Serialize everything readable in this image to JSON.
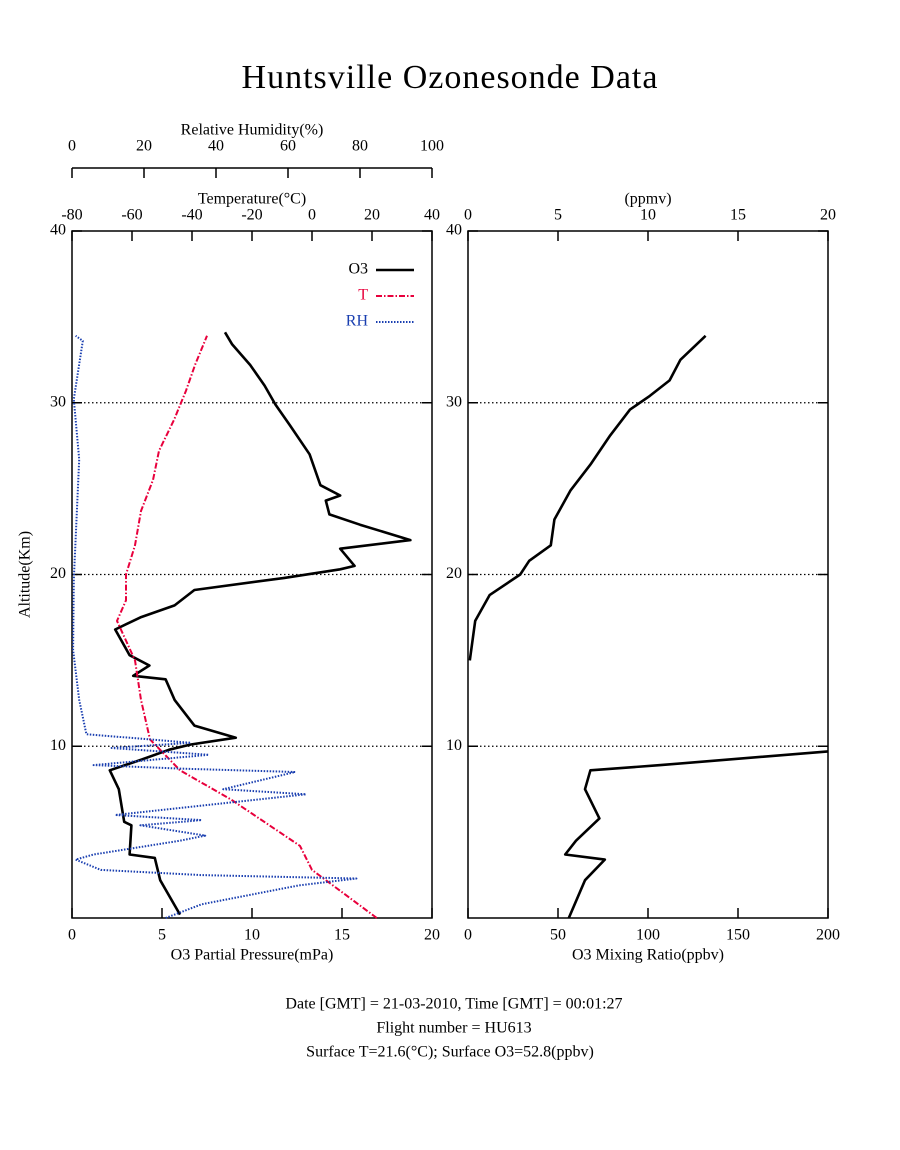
{
  "title": "Huntsville Ozonesonde Data",
  "footer": [
    "Date [GMT] = 21-03-2010,  Time [GMT] = 00:01:27",
    "Flight number = HU613",
    "Surface T=21.6(°C); Surface O3=52.8(ppbv)"
  ],
  "chart_data": [
    {
      "type": "line",
      "ylabel": "Altitude(Km)",
      "ylim": [
        0,
        40
      ],
      "yticks": [
        10,
        20,
        30,
        40
      ],
      "grid": true,
      "xlabel": "O3 Partial Pressure(mPa)",
      "xlim": [
        0,
        20
      ],
      "xticks": [
        0,
        5,
        10,
        15,
        20
      ],
      "x2label": "Temperature(°C)",
      "x2lim": [
        -80,
        40
      ],
      "x2ticks": [
        -80,
        -60,
        -40,
        -20,
        0,
        20,
        40
      ],
      "x3label": "Relative Humidity(%)",
      "x3lim": [
        0,
        100
      ],
      "x3ticks": [
        0,
        20,
        40,
        60,
        80,
        100
      ],
      "legend": "upper right",
      "series": [
        {
          "name": "O3",
          "color": "#000000",
          "linestyle": "solid",
          "axis": "x",
          "values": [
            6.0,
            4.9,
            4.6,
            3.2,
            3.3,
            2.9,
            2.6,
            2.1,
            3.8,
            5.4,
            6.6,
            9.1,
            6.8,
            5.7,
            5.2,
            3.4,
            4.3,
            3.2,
            2.4,
            3.8,
            5.7,
            6.8,
            11.8,
            14.9,
            15.7,
            14.9,
            18.8,
            16.0,
            14.3,
            14.1,
            14.9,
            13.8,
            13.2,
            12.1,
            11.3,
            10.7,
            9.9,
            8.9,
            8.5
          ],
          "altitude": [
            0.2,
            2.2,
            3.5,
            3.7,
            5.4,
            5.6,
            7.5,
            8.6,
            9.2,
            9.8,
            10.1,
            10.5,
            11.2,
            12.7,
            13.9,
            14.1,
            14.7,
            15.3,
            16.8,
            17.5,
            18.2,
            19.1,
            19.8,
            20.3,
            20.5,
            21.5,
            22.0,
            22.9,
            23.5,
            24.3,
            24.6,
            25.2,
            27.0,
            28.7,
            29.9,
            31.0,
            32.2,
            33.4,
            34.1
          ]
        },
        {
          "name": "T",
          "color": "#e8003c",
          "linestyle": "dashdot",
          "axis": "x2",
          "values": [
            21.6,
            0,
            -4,
            -27,
            -44,
            -49,
            -54,
            -57,
            -59,
            -65,
            -62,
            -62,
            -59,
            -57,
            -53,
            -51,
            -46,
            -42,
            -39,
            -35
          ],
          "altitude": [
            0,
            2.8,
            4.2,
            6.9,
            8.6,
            9.5,
            10.4,
            12.7,
            15.0,
            17.3,
            18.5,
            20.0,
            21.7,
            23.7,
            25.5,
            27.2,
            29.0,
            30.7,
            32.2,
            33.9
          ]
        },
        {
          "name": "RH",
          "color": "#1a3fb0",
          "linestyle": "dotted",
          "axis": "x3",
          "values": [
            26,
            36,
            63,
            79,
            36,
            8,
            1,
            6,
            30,
            37,
            19,
            36,
            12,
            65,
            42,
            62,
            30,
            6,
            38,
            11,
            33,
            4,
            2,
            0.3,
            0.5,
            2,
            0.5,
            3,
            1
          ],
          "altitude": [
            0,
            0.8,
            1.9,
            2.3,
            2.5,
            2.8,
            3.4,
            3.7,
            4.5,
            4.8,
            5.4,
            5.7,
            6.0,
            7.2,
            7.5,
            8.5,
            8.7,
            8.9,
            9.5,
            9.9,
            10.2,
            10.7,
            12.7,
            15.6,
            19.7,
            26.7,
            30.2,
            33.6,
            33.9
          ]
        }
      ]
    },
    {
      "type": "line",
      "ylim": [
        0,
        40
      ],
      "yticks": [
        10,
        20,
        30,
        40
      ],
      "grid": true,
      "xlabel": "O3 Mixing Ratio(ppbv)",
      "xlim": [
        0,
        200
      ],
      "xticks": [
        0,
        50,
        100,
        150,
        200
      ],
      "x2label": "(ppmv)",
      "x2lim": [
        0,
        20
      ],
      "x2ticks": [
        0,
        5,
        10,
        15,
        20
      ],
      "series": [
        {
          "color": "#000000",
          "linestyle": "solid",
          "axis": "x",
          "values": [
            56,
            65,
            76,
            54,
            60,
            73,
            65,
            68,
            107,
            200,
            null,
            1,
            4,
            12,
            29,
            34,
            46,
            48,
            57,
            68,
            79,
            90,
            101,
            112,
            118,
            132
          ],
          "altitude": [
            0,
            2.2,
            3.4,
            3.7,
            4.5,
            5.8,
            7.5,
            8.6,
            8.9,
            9.7,
            null,
            15.0,
            17.3,
            18.8,
            20.0,
            20.8,
            21.7,
            23.2,
            24.9,
            26.4,
            28.1,
            29.6,
            30.4,
            31.3,
            32.5,
            33.9
          ]
        }
      ]
    }
  ]
}
